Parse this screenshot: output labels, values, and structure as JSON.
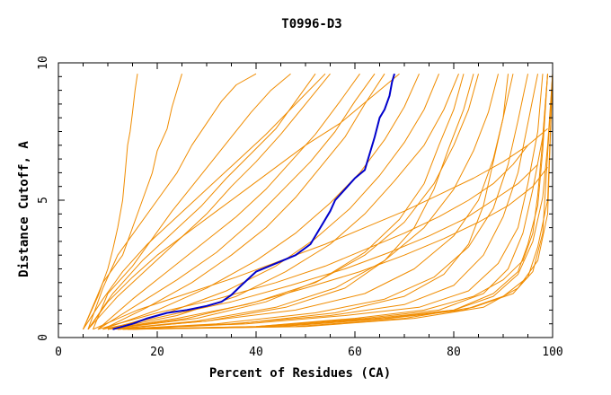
{
  "chart_data": {
    "type": "line",
    "title": "T0996-D3",
    "xlabel": "Percent of Residues (CA)",
    "ylabel": "Distance Cutoff, A",
    "xlim": [
      0,
      100
    ],
    "ylim": [
      0,
      10
    ],
    "x_ticks": [
      "0",
      "20",
      "40",
      "60",
      "80",
      "100"
    ],
    "y_ticks": [
      "0",
      "5",
      "10"
    ],
    "grid": false,
    "colors": {
      "highlight": "#0000cc",
      "others": "#f08c00",
      "axis": "#000000"
    },
    "highlight_series": {
      "x": [
        11,
        15,
        18,
        22,
        26,
        30,
        33,
        35,
        37,
        40,
        44,
        48,
        51,
        53,
        55,
        56,
        58,
        60,
        62,
        63,
        64,
        65,
        66,
        67,
        67.5,
        68
      ],
      "y": [
        0.3,
        0.5,
        0.7,
        0.9,
        1.0,
        1.15,
        1.3,
        1.55,
        1.9,
        2.4,
        2.7,
        3.0,
        3.4,
        4.0,
        4.6,
        5.0,
        5.4,
        5.8,
        6.1,
        6.7,
        7.3,
        8.0,
        8.3,
        8.8,
        9.3,
        9.6
      ]
    },
    "other_series": [
      {
        "x": [
          5,
          8,
          10,
          11,
          12,
          13,
          13.5,
          14,
          14.5,
          15,
          15.5,
          16
        ],
        "y": [
          0.3,
          1.5,
          2.5,
          3.2,
          4.0,
          5.0,
          6.0,
          7.0,
          7.5,
          8.2,
          9.0,
          9.6
        ]
      },
      {
        "x": [
          5,
          9,
          13,
          15,
          17,
          19,
          20,
          22,
          23,
          24,
          25
        ],
        "y": [
          0.3,
          2.0,
          3.0,
          4.0,
          5.0,
          6.0,
          6.8,
          7.6,
          8.4,
          9.0,
          9.6
        ]
      },
      {
        "x": [
          6,
          9,
          12,
          16,
          20,
          24,
          27,
          30,
          33,
          36,
          40
        ],
        "y": [
          0.3,
          1.8,
          3.0,
          4.0,
          5.0,
          6.0,
          7.0,
          7.8,
          8.6,
          9.2,
          9.6
        ]
      },
      {
        "x": [
          7,
          10,
          15,
          19,
          23,
          27,
          31,
          35,
          39,
          43,
          47
        ],
        "y": [
          0.3,
          1.6,
          2.6,
          3.6,
          4.6,
          5.5,
          6.4,
          7.3,
          8.2,
          9.0,
          9.6
        ]
      },
      {
        "x": [
          6,
          12,
          18,
          24,
          30,
          35,
          40,
          45,
          50,
          55
        ],
        "y": [
          0.3,
          1.5,
          2.5,
          3.5,
          4.5,
          5.5,
          6.4,
          7.4,
          8.5,
          9.6
        ]
      },
      {
        "x": [
          8,
          15,
          22,
          29,
          36,
          42,
          47,
          52,
          57,
          61
        ],
        "y": [
          0.3,
          1.4,
          2.4,
          3.4,
          4.4,
          5.4,
          6.4,
          7.4,
          8.6,
          9.6
        ]
      },
      {
        "x": [
          8,
          16,
          24,
          32,
          39,
          45,
          51,
          56,
          60,
          64
        ],
        "y": [
          0.3,
          1.2,
          2.1,
          3.1,
          4.2,
          5.3,
          6.4,
          7.5,
          8.6,
          9.6
        ]
      },
      {
        "x": [
          9,
          18,
          27,
          35,
          42,
          48,
          53,
          58,
          62,
          66
        ],
        "y": [
          0.3,
          1.1,
          2.0,
          3.0,
          4.0,
          5.1,
          6.2,
          7.3,
          8.5,
          9.6
        ]
      },
      {
        "x": [
          9,
          20,
          30,
          40,
          48,
          55,
          61,
          66,
          70,
          73
        ],
        "y": [
          0.3,
          1.0,
          1.8,
          2.8,
          3.8,
          4.9,
          6.0,
          7.2,
          8.4,
          9.6
        ]
      },
      {
        "x": [
          10,
          22,
          34,
          44,
          52,
          59,
          65,
          70,
          74,
          77
        ],
        "y": [
          0.3,
          0.9,
          1.7,
          2.6,
          3.6,
          4.7,
          5.9,
          7.1,
          8.3,
          9.6
        ]
      },
      {
        "x": [
          10,
          24,
          36,
          46,
          55,
          62,
          68,
          74,
          78,
          81
        ],
        "y": [
          0.3,
          0.8,
          1.5,
          2.4,
          3.4,
          4.5,
          5.7,
          7.0,
          8.3,
          9.6
        ]
      },
      {
        "x": [
          10,
          26,
          40,
          52,
          62,
          70,
          76,
          80,
          83,
          85
        ],
        "y": [
          0.3,
          0.7,
          1.3,
          2.0,
          3.0,
          4.2,
          5.6,
          7.0,
          8.3,
          9.6
        ]
      },
      {
        "x": [
          11,
          28,
          44,
          56,
          66,
          74,
          80,
          84,
          87,
          89
        ],
        "y": [
          0.3,
          0.6,
          1.1,
          1.8,
          2.8,
          4.0,
          5.4,
          6.8,
          8.2,
          9.6
        ]
      },
      {
        "x": [
          11,
          30,
          48,
          62,
          72,
          80,
          85,
          88,
          90,
          92
        ],
        "y": [
          0.3,
          0.6,
          1.0,
          1.6,
          2.5,
          3.7,
          5.0,
          6.5,
          8.0,
          9.6
        ]
      },
      {
        "x": [
          12,
          32,
          52,
          66,
          76,
          83,
          88,
          91,
          93,
          95
        ],
        "y": [
          0.3,
          0.5,
          0.9,
          1.4,
          2.2,
          3.3,
          4.7,
          6.3,
          7.9,
          9.6
        ]
      },
      {
        "x": [
          12,
          35,
          55,
          70,
          80,
          86,
          90,
          93,
          95,
          97
        ],
        "y": [
          0.3,
          0.5,
          0.8,
          1.2,
          1.9,
          3.0,
          4.4,
          6.0,
          7.8,
          9.6
        ]
      },
      {
        "x": [
          13,
          38,
          58,
          73,
          83,
          89,
          93,
          95,
          97,
          98
        ],
        "y": [
          0.3,
          0.5,
          0.8,
          1.1,
          1.7,
          2.7,
          4.0,
          5.6,
          7.5,
          9.6
        ]
      },
      {
        "x": [
          13,
          40,
          62,
          77,
          86,
          91,
          94,
          96,
          98,
          99
        ],
        "y": [
          0.3,
          0.4,
          0.7,
          1.0,
          1.6,
          2.5,
          3.8,
          5.4,
          7.3,
          9.6
        ]
      },
      {
        "x": [
          14,
          42,
          64,
          80,
          88,
          93,
          96,
          98,
          99,
          100
        ],
        "y": [
          0.3,
          0.4,
          0.7,
          1.0,
          1.5,
          2.3,
          3.5,
          5.1,
          7.0,
          9.6
        ]
      },
      {
        "x": [
          14,
          45,
          67,
          82,
          90,
          95,
          97,
          99,
          100
        ],
        "y": [
          0.3,
          0.4,
          0.7,
          1.0,
          1.5,
          2.2,
          3.3,
          5.0,
          9.6
        ]
      },
      {
        "x": [
          15,
          48,
          70,
          84,
          92,
          96,
          98,
          100
        ],
        "y": [
          0.3,
          0.4,
          0.7,
          1.1,
          1.6,
          2.4,
          3.8,
          9.6
        ]
      },
      {
        "x": [
          15,
          50,
          72,
          86,
          93,
          97,
          99,
          100
        ],
        "y": [
          0.3,
          0.4,
          0.7,
          1.1,
          1.8,
          2.8,
          4.5,
          9.6
        ]
      },
      {
        "x": [
          8,
          20,
          32,
          44,
          54,
          62,
          70,
          77,
          83,
          88,
          92,
          95
        ],
        "y": [
          0.3,
          0.9,
          1.4,
          2.0,
          2.6,
          3.2,
          3.8,
          4.4,
          5.0,
          5.6,
          6.3,
          7.0
        ]
      },
      {
        "x": [
          9,
          22,
          35,
          47,
          58,
          67,
          75,
          82,
          88,
          93,
          97
        ],
        "y": [
          0.3,
          0.8,
          1.3,
          1.9,
          2.5,
          3.1,
          3.7,
          4.3,
          5.0,
          5.6,
          6.3
        ]
      },
      {
        "x": [
          10,
          24,
          38,
          50,
          61,
          70,
          78,
          85,
          91,
          96,
          99
        ],
        "y": [
          0.3,
          0.7,
          1.2,
          1.8,
          2.4,
          3.0,
          3.6,
          4.2,
          4.8,
          5.5,
          6.2
        ]
      },
      {
        "x": [
          7,
          16,
          26,
          36,
          45,
          54,
          62,
          70,
          77,
          84,
          90,
          95,
          99
        ],
        "y": [
          0.3,
          1.0,
          1.6,
          2.2,
          2.8,
          3.4,
          4.0,
          4.6,
          5.2,
          5.8,
          6.4,
          7.0,
          7.6
        ]
      },
      {
        "x": [
          6,
          10,
          15,
          20,
          26,
          32,
          38,
          44,
          50,
          57,
          63,
          69
        ],
        "y": [
          0.3,
          1.3,
          2.2,
          3.0,
          3.8,
          4.6,
          5.4,
          6.2,
          7.0,
          7.8,
          8.7,
          9.6
        ]
      },
      {
        "x": [
          5,
          9,
          13,
          18,
          24,
          30,
          36,
          42,
          48,
          54
        ],
        "y": [
          0.3,
          1.4,
          2.4,
          3.4,
          4.4,
          5.4,
          6.4,
          7.4,
          8.5,
          9.6
        ]
      },
      {
        "x": [
          6,
          11,
          17,
          23,
          29,
          34,
          39,
          44,
          48,
          52
        ],
        "y": [
          0.3,
          1.6,
          2.8,
          3.8,
          4.8,
          5.8,
          6.7,
          7.6,
          8.6,
          9.6
        ]
      },
      {
        "x": [
          12,
          36,
          56,
          70,
          78,
          83,
          86,
          88,
          90,
          91
        ],
        "y": [
          0.3,
          0.5,
          0.9,
          1.5,
          2.3,
          3.4,
          4.8,
          6.4,
          8.0,
          9.6
        ]
      },
      {
        "x": [
          11,
          30,
          46,
          58,
          66,
          72,
          76,
          79,
          82,
          84
        ],
        "y": [
          0.3,
          0.6,
          1.1,
          1.8,
          2.8,
          4.0,
          5.4,
          6.9,
          8.3,
          9.6
        ]
      },
      {
        "x": [
          10,
          28,
          42,
          53,
          62,
          69,
          74,
          77,
          80,
          82
        ],
        "y": [
          0.3,
          0.7,
          1.3,
          2.1,
          3.1,
          4.3,
          5.6,
          7.0,
          8.3,
          9.6
        ]
      },
      {
        "x": [
          13,
          40,
          60,
          74,
          84,
          90,
          94,
          96,
          97,
          98,
          99
        ],
        "y": [
          0.3,
          0.4,
          0.7,
          1.0,
          1.5,
          2.1,
          2.8,
          3.8,
          5.2,
          7.2,
          9.6
        ]
      },
      {
        "x": [
          14,
          44,
          66,
          80,
          88,
          93,
          95,
          97,
          98,
          99
        ],
        "y": [
          0.3,
          0.4,
          0.7,
          1.0,
          1.6,
          2.4,
          3.4,
          4.8,
          6.8,
          9.6
        ]
      }
    ]
  }
}
